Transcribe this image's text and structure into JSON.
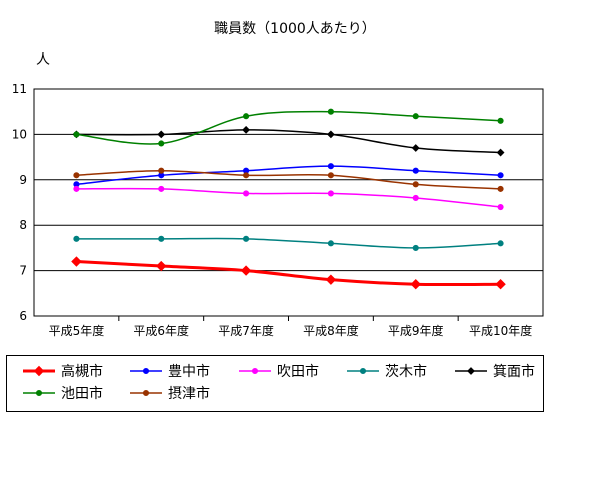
{
  "chart_data": {
    "type": "line",
    "title": "職員数（1000人あたり）",
    "ylabel": "人",
    "xlabel": "",
    "ylim": [
      6,
      11
    ],
    "yticks": [
      6,
      7,
      8,
      9,
      10,
      11
    ],
    "grid": true,
    "legend_position": "bottom",
    "categories": [
      "平成5年度",
      "平成6年度",
      "平成7年度",
      "平成8年度",
      "平成9年度",
      "平成10年度"
    ],
    "series": [
      {
        "name": "高槻市",
        "color": "#ff0000",
        "marker": "diamond",
        "values": [
          7.2,
          7.1,
          7.0,
          6.8,
          6.7,
          6.7
        ]
      },
      {
        "name": "豊中市",
        "color": "#0000ff",
        "marker": "circle",
        "values": [
          8.9,
          9.1,
          9.2,
          9.3,
          9.2,
          9.1
        ]
      },
      {
        "name": "吹田市",
        "color": "#ff00ff",
        "marker": "circle",
        "values": [
          8.8,
          8.8,
          8.7,
          8.7,
          8.6,
          8.4
        ]
      },
      {
        "name": "茨木市",
        "color": "#008080",
        "marker": "circle",
        "values": [
          7.7,
          7.7,
          7.7,
          7.6,
          7.5,
          7.6
        ]
      },
      {
        "name": "箕面市",
        "color": "#000000",
        "marker": "diamond",
        "values": [
          10.0,
          10.0,
          10.1,
          10.0,
          9.7,
          9.6
        ]
      },
      {
        "name": "池田市",
        "color": "#008000",
        "marker": "circle",
        "values": [
          10.0,
          9.8,
          10.4,
          10.5,
          10.4,
          10.3
        ]
      },
      {
        "name": "摂津市",
        "color": "#993300",
        "marker": "circle",
        "values": [
          9.1,
          9.2,
          9.1,
          9.1,
          8.9,
          8.8
        ]
      }
    ]
  }
}
